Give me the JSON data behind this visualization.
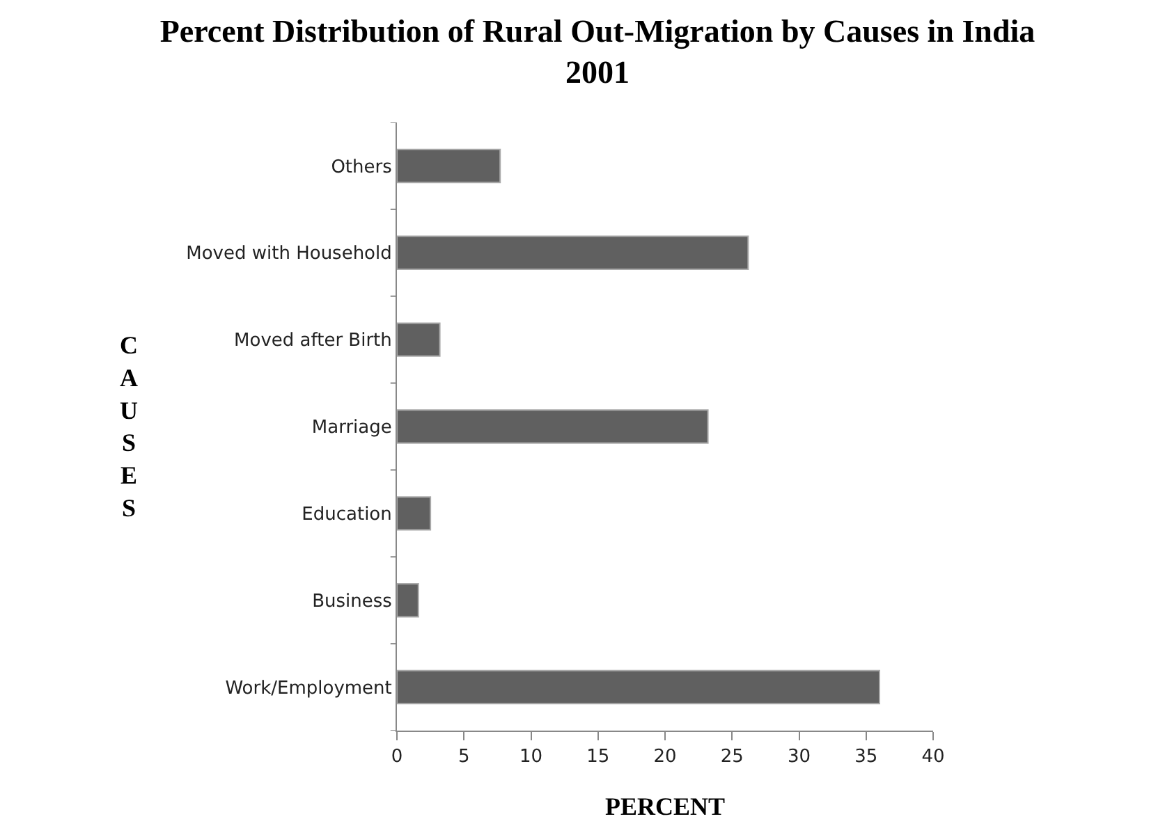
{
  "chart_data": {
    "type": "bar",
    "orientation": "horizontal",
    "title": "Percent Distribution of Rural Out-Migration by Causes in India 2001",
    "xlabel": "PERCENT",
    "ylabel": "CAUSES",
    "categories": [
      "Others",
      "Moved with Household",
      "Moved after Birth",
      "Marriage",
      "Education",
      "Business",
      "Work/Employment"
    ],
    "values": [
      7.7,
      26.2,
      3.2,
      23.2,
      2.5,
      1.6,
      36.0
    ],
    "color": "#606060",
    "xlim": [
      0,
      40
    ],
    "xticks": [
      0,
      5,
      10,
      15,
      20,
      25,
      30,
      35,
      40
    ],
    "grid": false
  }
}
